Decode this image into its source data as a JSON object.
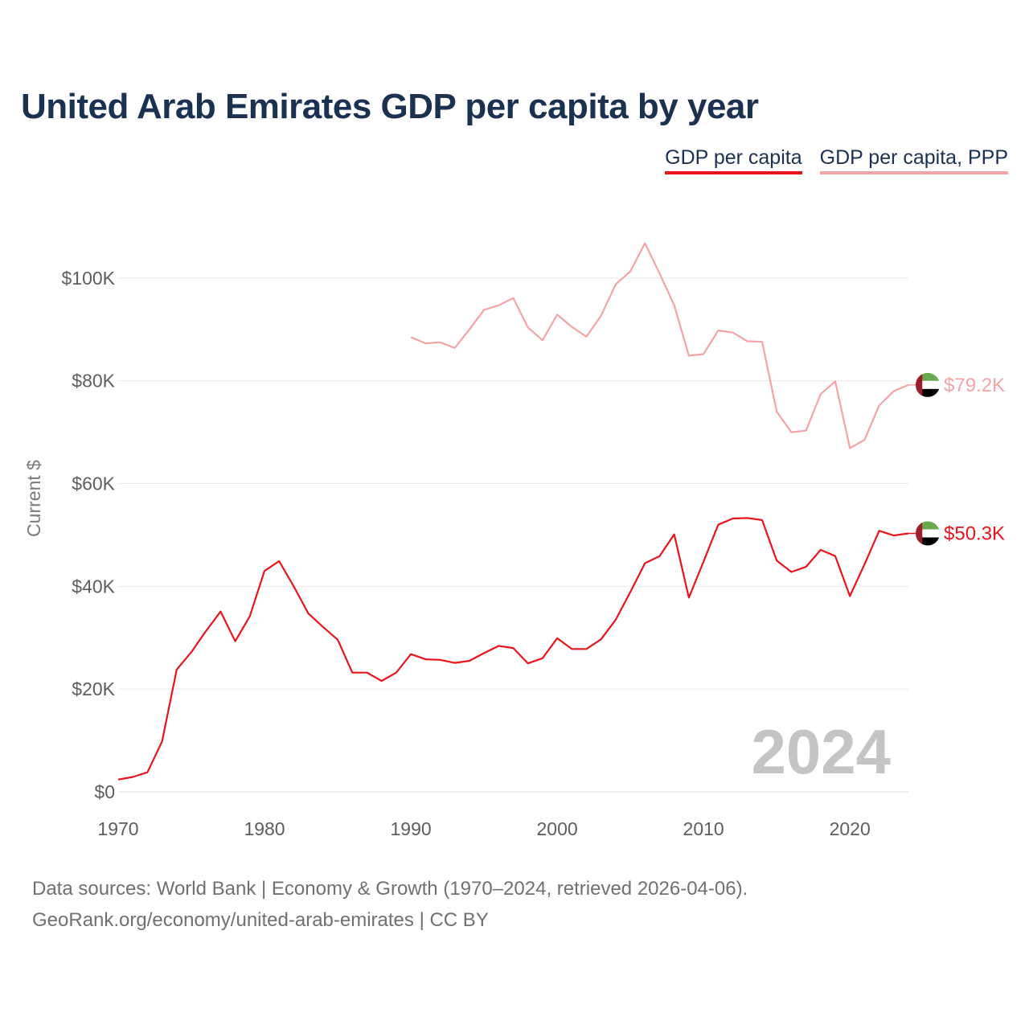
{
  "title": "United Arab Emirates GDP per capita by year",
  "legend": [
    {
      "label": "GDP per capita",
      "color": "#e8141c"
    },
    {
      "label": "GDP per capita, PPP",
      "color": "#f4a3a6"
    }
  ],
  "footer": {
    "line1": "Data sources: World Bank | Economy & Growth (1970–2024, retrieved 2026-04-06).",
    "line2": "GeoRank.org/economy/united-arab-emirates | CC BY"
  },
  "chart_data": {
    "type": "line",
    "title": "United Arab Emirates GDP per capita by year",
    "xlabel": "",
    "ylabel": "Current $",
    "xlim": [
      1970,
      2024
    ],
    "ylim": [
      0,
      110000
    ],
    "xticks": [
      1970,
      1980,
      1990,
      2000,
      2010,
      2020
    ],
    "yticks": [
      0,
      20000,
      40000,
      60000,
      80000,
      100000
    ],
    "ytick_labels": [
      "$0",
      "$20K",
      "$40K",
      "$60K",
      "$80K",
      "$100K"
    ],
    "grid": true,
    "year_overlay": "2024",
    "series": [
      {
        "name": "GDP per capita",
        "color": "#e8141c",
        "end_label": "$50.3K",
        "x": [
          1970,
          1971,
          1972,
          1973,
          1974,
          1975,
          1976,
          1977,
          1978,
          1979,
          1980,
          1981,
          1982,
          1983,
          1984,
          1985,
          1986,
          1987,
          1988,
          1989,
          1990,
          1991,
          1992,
          1993,
          1994,
          1995,
          1996,
          1997,
          1998,
          1999,
          2000,
          2001,
          2002,
          2003,
          2004,
          2005,
          2006,
          2007,
          2008,
          2009,
          2010,
          2011,
          2012,
          2013,
          2014,
          2015,
          2016,
          2017,
          2018,
          2019,
          2020,
          2021,
          2022,
          2023,
          2024
        ],
        "values": [
          2400,
          2900,
          3800,
          9800,
          23800,
          27200,
          31300,
          35100,
          29300,
          34200,
          43000,
          44900,
          40000,
          34700,
          32100,
          29600,
          23200,
          23200,
          21600,
          23200,
          26800,
          25800,
          25700,
          25100,
          25500,
          27000,
          28400,
          28000,
          25000,
          26000,
          29900,
          27800,
          27800,
          29700,
          33500,
          38900,
          44500,
          45900,
          50100,
          37800,
          44800,
          52000,
          53200,
          53300,
          52900,
          45000,
          42800,
          43800,
          47100,
          45900,
          38100,
          44300,
          50800,
          49900,
          50300
        ]
      },
      {
        "name": "GDP per capita, PPP",
        "color": "#f4a3a6",
        "end_label": "$79.2K",
        "x": [
          1990,
          1991,
          1992,
          1993,
          1994,
          1995,
          1996,
          1997,
          1998,
          1999,
          2000,
          2001,
          2002,
          2003,
          2004,
          2005,
          2006,
          2007,
          2008,
          2009,
          2010,
          2011,
          2012,
          2013,
          2014,
          2015,
          2016,
          2017,
          2018,
          2019,
          2020,
          2021,
          2022,
          2023,
          2024
        ],
        "values": [
          88500,
          87300,
          87500,
          86400,
          90000,
          93800,
          94700,
          96100,
          90400,
          87900,
          92900,
          90500,
          88600,
          92700,
          98800,
          101300,
          106800,
          100900,
          94700,
          84900,
          85200,
          89800,
          89400,
          87700,
          87600,
          74000,
          70000,
          70300,
          77400,
          79900,
          66900,
          68500,
          75200,
          78000,
          79200
        ]
      }
    ]
  }
}
